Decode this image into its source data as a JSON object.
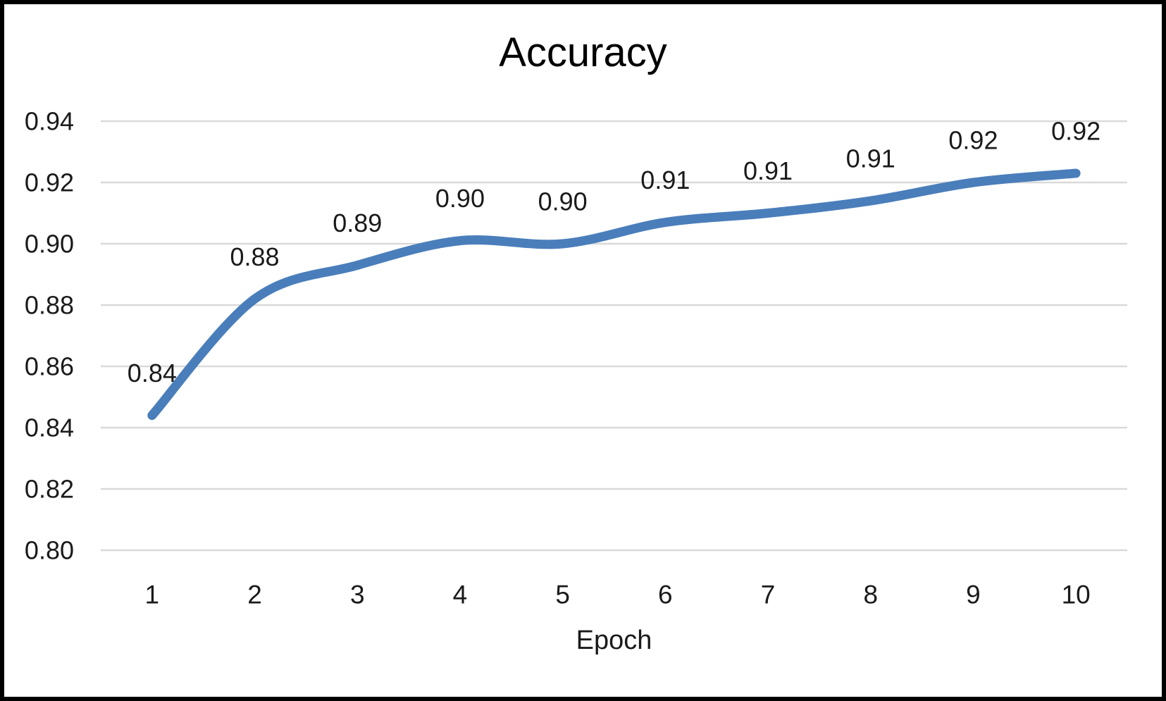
{
  "chart_data": {
    "type": "line",
    "title": "Accuracy",
    "xlabel": "Epoch",
    "ylabel": "",
    "categories": [
      "1",
      "2",
      "3",
      "4",
      "5",
      "6",
      "7",
      "8",
      "9",
      "10"
    ],
    "series": [
      {
        "name": "Accuracy",
        "values": [
          0.844,
          0.882,
          0.893,
          0.901,
          0.9,
          0.907,
          0.91,
          0.914,
          0.92,
          0.923
        ]
      }
    ],
    "data_labels": [
      "0.84",
      "0.88",
      "0.89",
      "0.90",
      "0.90",
      "0.91",
      "0.91",
      "0.91",
      "0.92",
      "0.92"
    ],
    "ylim": [
      0.8,
      0.94
    ],
    "ytick_step": 0.02,
    "yticks": [
      "0.94",
      "0.92",
      "0.90",
      "0.88",
      "0.86",
      "0.84",
      "0.82",
      "0.80"
    ],
    "grid": "horizontal",
    "legend_position": "none",
    "line_smoothed": true,
    "colors": {
      "line": "#4A7EBB",
      "gridline": "#D9D9D9",
      "tick_text": "#1A1A1A",
      "title_text": "#000000",
      "background": "#FFFFFF",
      "frame_border": "#000000"
    }
  }
}
